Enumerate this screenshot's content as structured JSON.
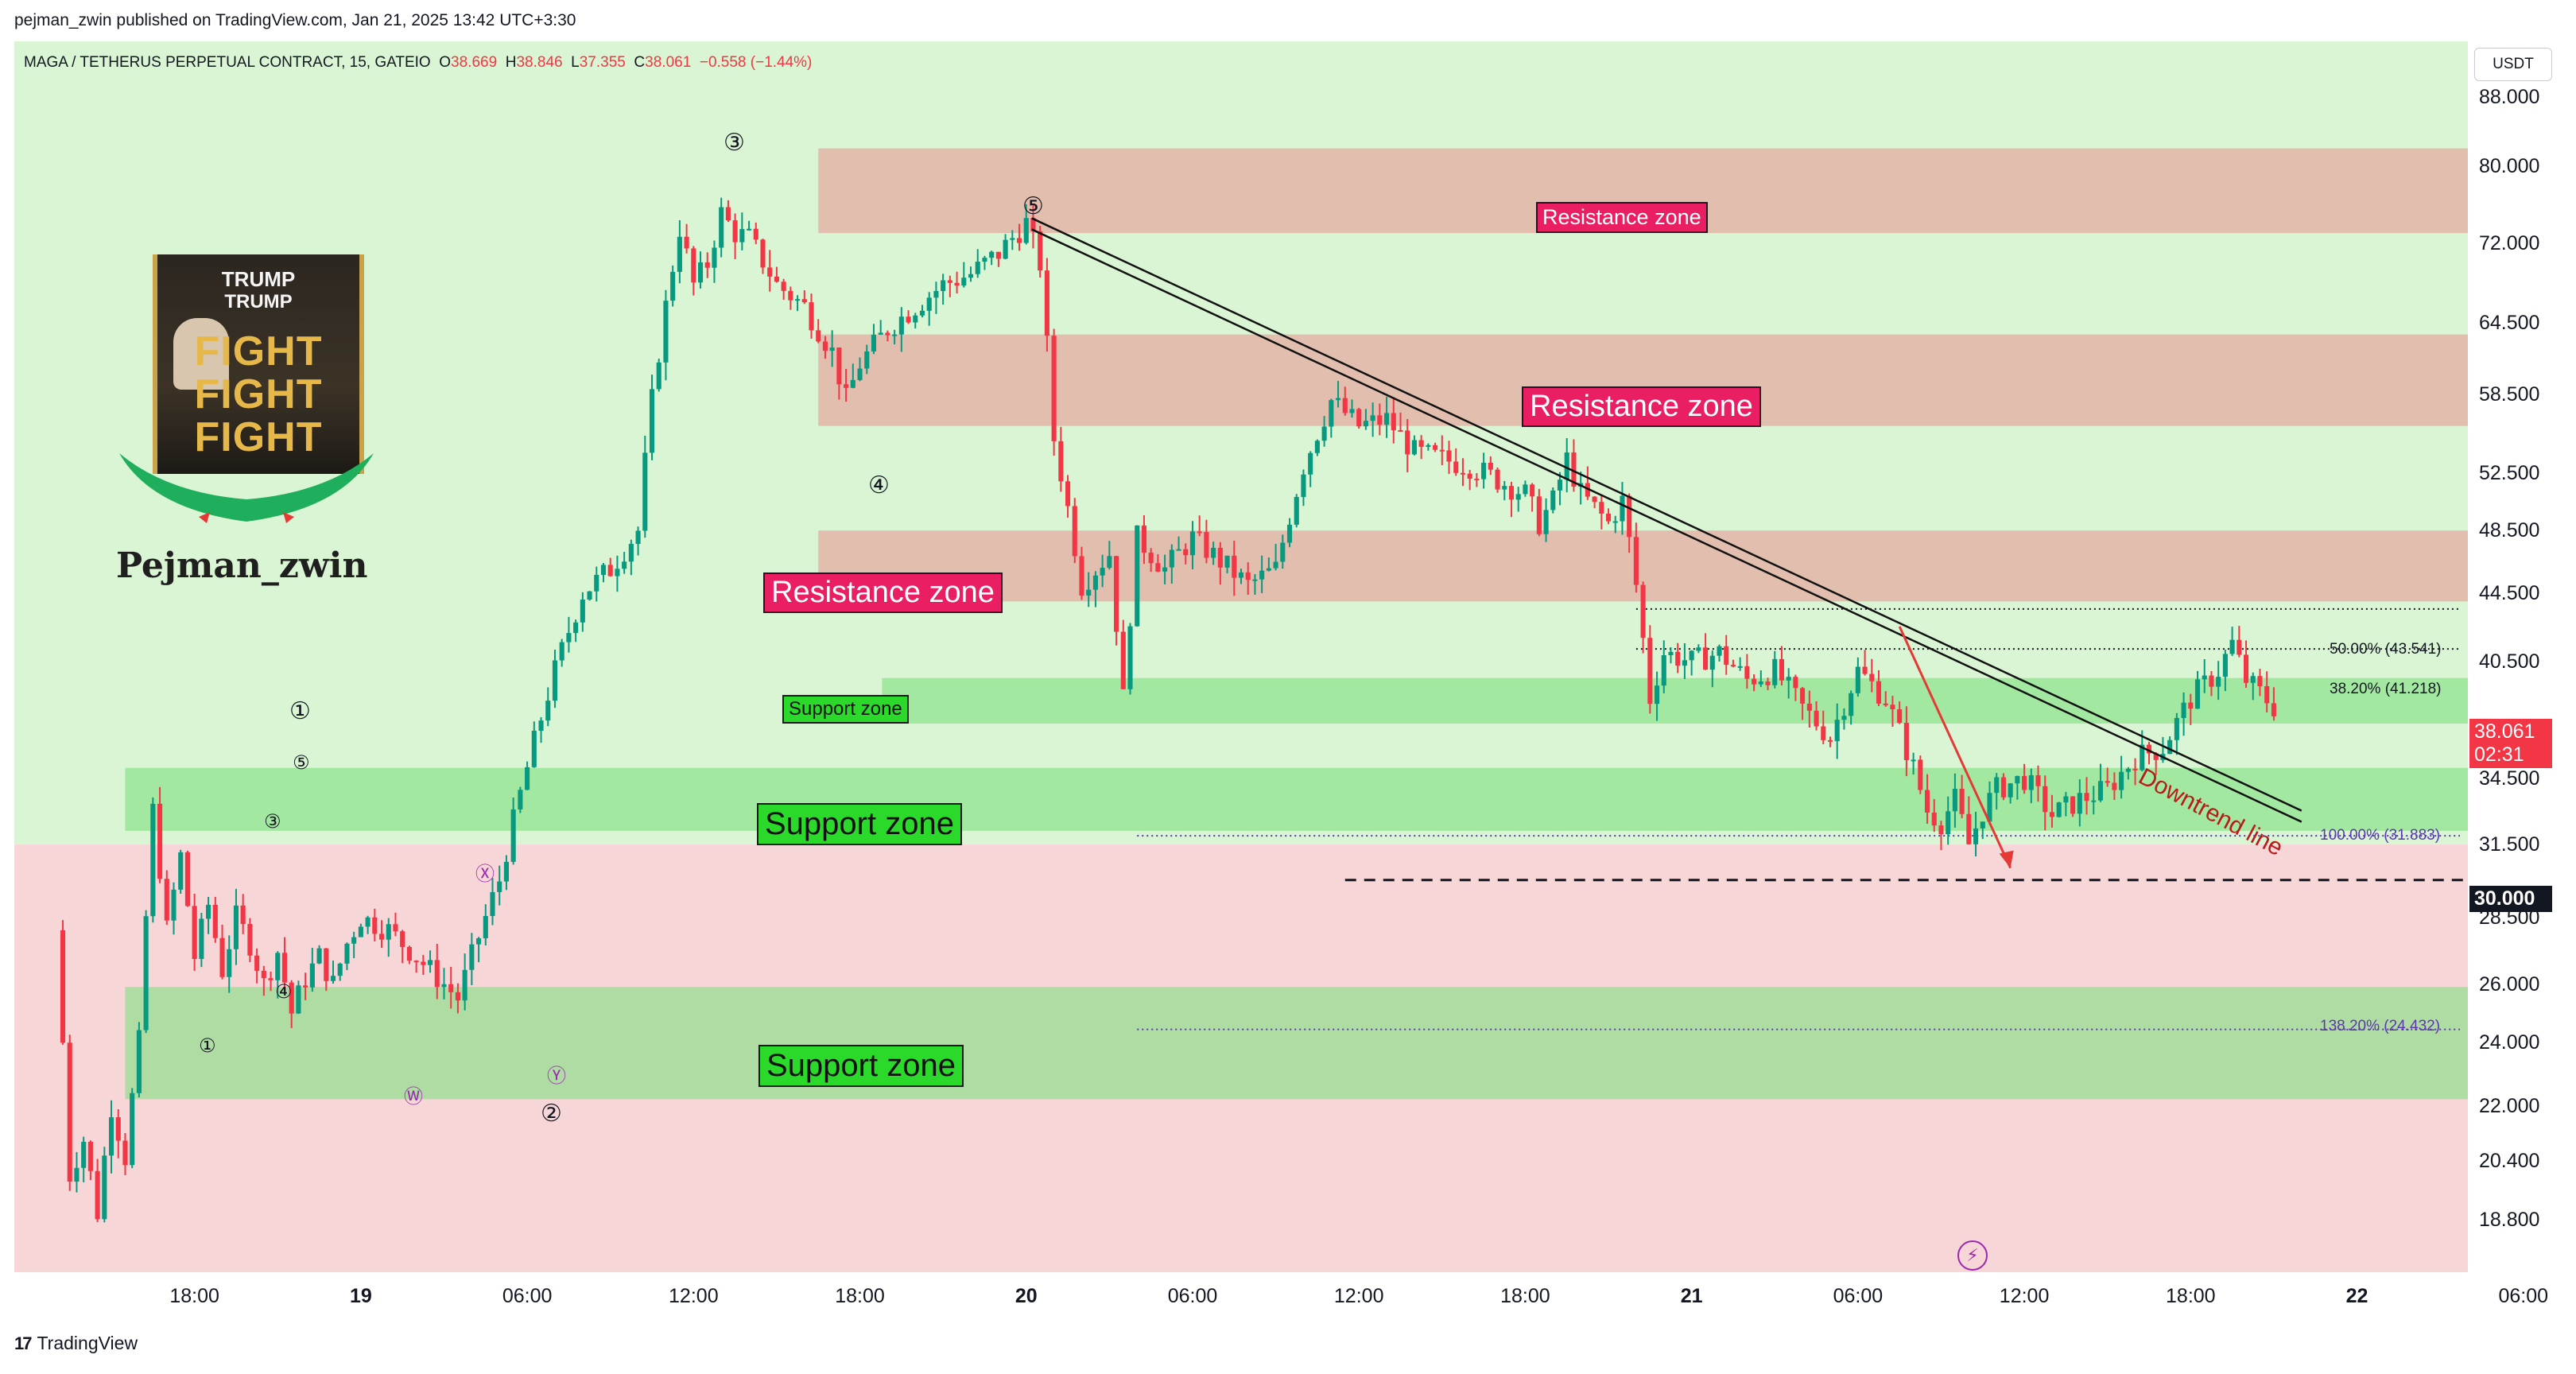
{
  "publisher": "pejman_zwin published on TradingView.com, Jan 21, 2025 13:42 UTC+3:30",
  "symbol": {
    "name": "MAGA / TETHERUS PERPETUAL CONTRACT, 15, GATEIO",
    "o_label": "O",
    "o_value": "38.669",
    "h_label": "H",
    "h_value": "38.846",
    "l_label": "L",
    "l_value": "37.355",
    "c_label": "C",
    "c_value": "38.061",
    "change": "−0.558 (−1.44%)"
  },
  "currency_button": "USDT",
  "current_price": {
    "value": "38.061",
    "countdown": "02:31"
  },
  "level_price": "30.000",
  "avatar": {
    "line1": "TRUMP",
    "line2": "TRUMP",
    "word": "FIGHT",
    "name": "Pejman_zwin"
  },
  "annotations": {
    "downtrend": "Downtrend line",
    "zones": {
      "resistance_top": "Resistance zone",
      "resistance_upper": "Resistance zone",
      "resistance_mid": "Resistance zone",
      "support_small": "Support zone",
      "support_mid": "Support zone",
      "support_low": "Support zone"
    },
    "fib": {
      "f50": "50.00% (43.541)",
      "f382": "38.20% (41.218)",
      "f100": "100.00% (31.883)",
      "f1382": "138.20% (24.432)"
    },
    "waves": {
      "w1": "①",
      "w2": "②",
      "w3": "③",
      "w4": "④",
      "w5": "⑤",
      "s1": "①",
      "s3": "③",
      "s4": "④",
      "s5": "⑤",
      "pw": "Ⓦ",
      "px": "Ⓧ",
      "py": "Ⓨ"
    }
  },
  "footer": {
    "logo": "17",
    "brand": "TradingView"
  },
  "colors": {
    "bull": "#089981",
    "bear": "#f23645",
    "resistance": "#e88f8f",
    "support": "#7ee07e",
    "bg_green": "#d9f5d3",
    "bg_red": "#f6d6d6"
  },
  "chart_data": {
    "type": "candlestick",
    "title": "MAGA / TETHERUS PERPETUAL CONTRACT, 15, GATEIO",
    "ylabel": "USDT",
    "ylim": [
      17.5,
      95
    ],
    "y_scale": "log",
    "y_ticks": [
      "88.000",
      "80.000",
      "72.000",
      "64.500",
      "58.500",
      "52.500",
      "48.500",
      "44.500",
      "40.500",
      "34.500",
      "31.500",
      "28.500",
      "26.000",
      "24.000",
      "22.000",
      "20.400",
      "18.800"
    ],
    "x_ticks": [
      "18:00",
      "19",
      "06:00",
      "12:00",
      "18:00",
      "20",
      "06:00",
      "12:00",
      "18:00",
      "21",
      "06:00",
      "12:00",
      "18:00",
      "22",
      "06:00"
    ],
    "x_range_hours": [
      -6.5,
      82
    ],
    "resistance_zones": [
      {
        "low": 73.0,
        "high": 82.0
      },
      {
        "low": 56.0,
        "high": 63.5
      },
      {
        "low": 44.0,
        "high": 48.5
      }
    ],
    "support_zones": [
      {
        "low": 37.2,
        "high": 39.6
      },
      {
        "low": 32.1,
        "high": 35.0
      },
      {
        "low": 22.2,
        "high": 25.9
      }
    ],
    "fib_levels": [
      {
        "label": "50.00%",
        "value": 43.541
      },
      {
        "label": "38.20%",
        "value": 41.218
      },
      {
        "label": "100.00%",
        "value": 31.883
      },
      {
        "label": "138.20%",
        "value": 24.432
      }
    ],
    "horizontal_level": 30.0,
    "last_price": 38.061,
    "downtrend_line": {
      "start": [
        30.2,
        74.5
      ],
      "end": [
        76.0,
        33.0
      ]
    },
    "price_path": [
      [
        -5.0,
        28.0
      ],
      [
        -4.5,
        20.0
      ],
      [
        -4.0,
        21.0
      ],
      [
        -3.5,
        19.0
      ],
      [
        -3.0,
        22.0
      ],
      [
        -2.5,
        20.5
      ],
      [
        -2.0,
        24.0
      ],
      [
        -1.5,
        33.0
      ],
      [
        -1.0,
        28.0
      ],
      [
        -0.5,
        31.0
      ],
      [
        0.0,
        27.0
      ],
      [
        0.5,
        29.0
      ],
      [
        1.0,
        26.5
      ],
      [
        1.5,
        28.5
      ],
      [
        2.0,
        27.5
      ],
      [
        2.5,
        26.0
      ],
      [
        3.0,
        27.2
      ],
      [
        3.5,
        25.0
      ],
      [
        4.0,
        26.2
      ],
      [
        4.5,
        27.0
      ],
      [
        5.0,
        26.0
      ],
      [
        5.5,
        27.5
      ],
      [
        6.0,
        28.5
      ],
      [
        7.0,
        28.0
      ],
      [
        8.0,
        27.0
      ],
      [
        9.0,
        26.0
      ],
      [
        9.5,
        25.5
      ],
      [
        10.0,
        27.0
      ],
      [
        11.0,
        30.0
      ],
      [
        12.0,
        35.0
      ],
      [
        13.0,
        40.0
      ],
      [
        14.0,
        44.5
      ],
      [
        15.0,
        46.0
      ],
      [
        16.0,
        48.5
      ],
      [
        16.5,
        58.0
      ],
      [
        17.0,
        66.0
      ],
      [
        17.5,
        73.5
      ],
      [
        18.0,
        68.0
      ],
      [
        18.5,
        70.0
      ],
      [
        19.0,
        75.0
      ],
      [
        19.5,
        73.0
      ],
      [
        20.0,
        72.5
      ],
      [
        21.0,
        68.0
      ],
      [
        22.0,
        66.0
      ],
      [
        23.0,
        62.0
      ],
      [
        23.5,
        58.0
      ],
      [
        24.0,
        61.0
      ],
      [
        25.0,
        64.0
      ],
      [
        26.0,
        66.0
      ],
      [
        27.0,
        68.0
      ],
      [
        28.0,
        69.0
      ],
      [
        29.0,
        71.0
      ],
      [
        30.0,
        74.0
      ],
      [
        30.5,
        70.0
      ],
      [
        31.0,
        55.0
      ],
      [
        31.5,
        50.0
      ],
      [
        32.0,
        45.0
      ],
      [
        33.0,
        47.0
      ],
      [
        33.5,
        38.5
      ],
      [
        34.0,
        48.0
      ],
      [
        35.0,
        46.0
      ],
      [
        36.0,
        48.0
      ],
      [
        37.0,
        46.5
      ],
      [
        38.0,
        45.0
      ],
      [
        39.0,
        46.0
      ],
      [
        40.0,
        53.0
      ],
      [
        41.0,
        58.0
      ],
      [
        42.0,
        56.0
      ],
      [
        43.0,
        56.5
      ],
      [
        44.0,
        54.0
      ],
      [
        45.0,
        53.5
      ],
      [
        46.0,
        53.0
      ],
      [
        47.0,
        52.0
      ],
      [
        48.0,
        51.0
      ],
      [
        48.5,
        49.0
      ],
      [
        49.0,
        50.5
      ],
      [
        49.5,
        53.5
      ],
      [
        50.0,
        51.0
      ],
      [
        51.0,
        49.0
      ],
      [
        51.5,
        50.5
      ],
      [
        52.0,
        45.0
      ],
      [
        52.5,
        38.5
      ],
      [
        53.0,
        41.0
      ],
      [
        54.0,
        40.5
      ],
      [
        55.0,
        41.0
      ],
      [
        56.0,
        39.5
      ],
      [
        57.0,
        40.0
      ],
      [
        58.0,
        38.0
      ],
      [
        59.0,
        36.5
      ],
      [
        60.0,
        40.0
      ],
      [
        61.0,
        38.5
      ],
      [
        62.0,
        35.0
      ],
      [
        62.5,
        33.0
      ],
      [
        63.0,
        32.5
      ],
      [
        63.5,
        33.5
      ],
      [
        64.0,
        31.5
      ],
      [
        64.5,
        33.0
      ],
      [
        65.0,
        34.0
      ],
      [
        66.0,
        34.5
      ],
      [
        67.0,
        32.8
      ],
      [
        68.0,
        33.5
      ],
      [
        69.0,
        34.0
      ],
      [
        70.0,
        35.5
      ],
      [
        71.0,
        36.0
      ],
      [
        72.0,
        38.5
      ],
      [
        73.0,
        40.0
      ],
      [
        73.5,
        41.5
      ],
      [
        74.0,
        39.5
      ],
      [
        74.5,
        38.8
      ],
      [
        75.0,
        38.061
      ]
    ]
  }
}
